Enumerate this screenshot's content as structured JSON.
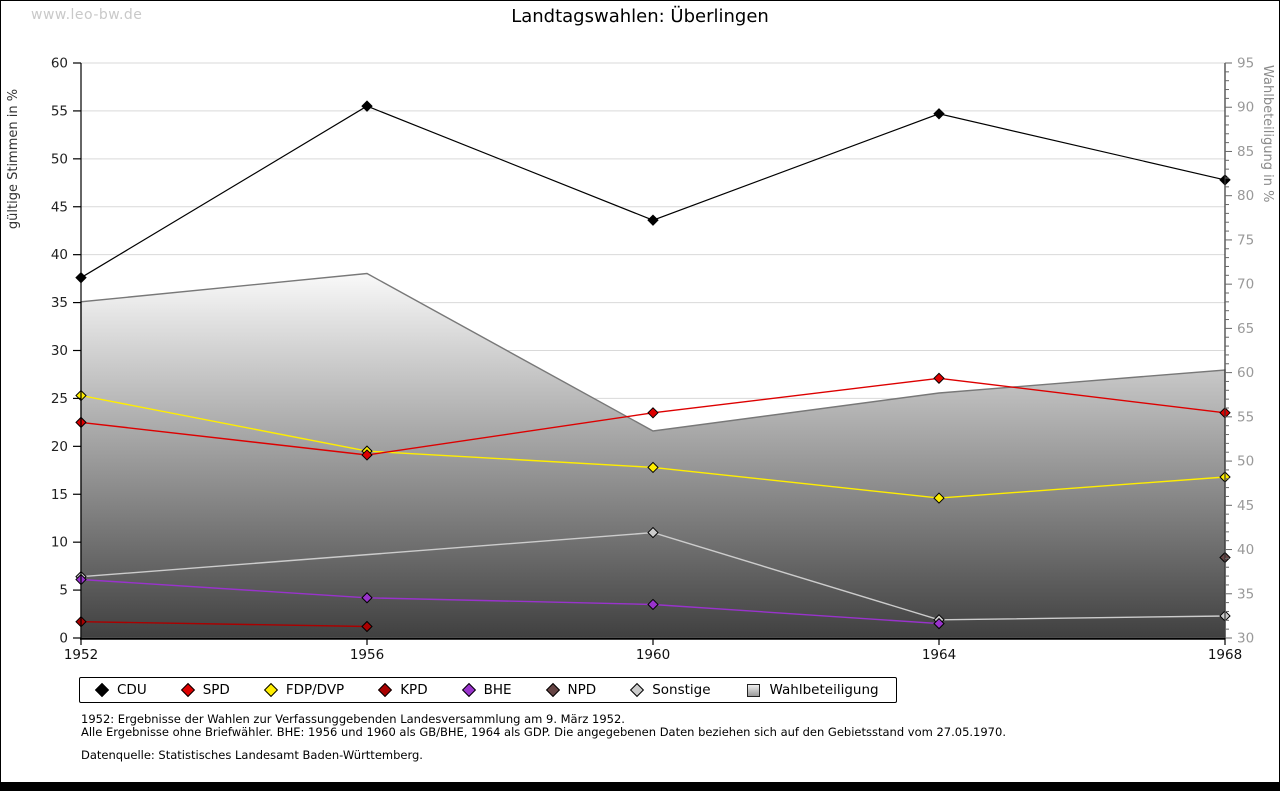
{
  "watermark": "www.leo-bw.de",
  "title": "Landtagswahlen: Überlingen",
  "chart_data": {
    "type": "line",
    "title": "Landtagswahlen: Überlingen",
    "x": [
      1952,
      1956,
      1960,
      1964,
      1968
    ],
    "ylabel_left": "gültige Stimmen in %",
    "ylabel_right": "Wahlbeteiligung in %",
    "ylim_left": [
      0,
      60
    ],
    "ylim_right": [
      30,
      95
    ],
    "ytick_step": 5,
    "grid": true,
    "legend_position": "bottom",
    "series": [
      {
        "name": "CDU",
        "color": "#000000",
        "axis": "left",
        "values": [
          37.6,
          55.5,
          43.6,
          54.7,
          47.8
        ]
      },
      {
        "name": "SPD",
        "color": "#dd0000",
        "axis": "left",
        "values": [
          22.5,
          19.1,
          23.5,
          27.1,
          23.5
        ]
      },
      {
        "name": "FDP/DVP",
        "color": "#ffee00",
        "axis": "left",
        "values": [
          25.3,
          19.5,
          17.8,
          14.6,
          16.8
        ]
      },
      {
        "name": "KPD",
        "color": "#aa0000",
        "axis": "left",
        "values": [
          1.7,
          1.2,
          null,
          null,
          null
        ]
      },
      {
        "name": "BHE",
        "color": "#9933cc",
        "axis": "left",
        "values": [
          6.1,
          4.2,
          3.5,
          1.5,
          null
        ]
      },
      {
        "name": "NPD",
        "color": "#664444",
        "axis": "left",
        "values": [
          null,
          null,
          null,
          null,
          8.4
        ]
      },
      {
        "name": "Sonstige",
        "color": "#cccccc",
        "axis": "left",
        "values": [
          6.4,
          null,
          11.0,
          1.9,
          2.3
        ]
      }
    ],
    "area_series": {
      "name": "Wahlbeteiligung",
      "axis": "right",
      "values": [
        68.0,
        71.2,
        53.4,
        57.7,
        60.3
      ],
      "stroke": "#787878",
      "fill_top": "#f9f9f9",
      "fill_bottom": "#404040"
    }
  },
  "legend": {
    "items": [
      {
        "label": "CDU",
        "color": "#000000",
        "marker": "diamond"
      },
      {
        "label": "SPD",
        "color": "#dd0000",
        "marker": "diamond"
      },
      {
        "label": "FDP/DVP",
        "color": "#ffee00",
        "marker": "diamond"
      },
      {
        "label": "KPD",
        "color": "#aa0000",
        "marker": "diamond"
      },
      {
        "label": "BHE",
        "color": "#9933cc",
        "marker": "diamond"
      },
      {
        "label": "NPD",
        "color": "#664444",
        "marker": "diamond"
      },
      {
        "label": "Sonstige",
        "color": "#cccccc",
        "marker": "diamond"
      },
      {
        "label": "Wahlbeteiligung",
        "color": "#bbbbbb",
        "marker": "square"
      }
    ]
  },
  "footnotes": {
    "line1": "1952: Ergebnisse der Wahlen zur Verfassunggebenden Landesversammlung am 9. März 1952.",
    "line2": "Alle Ergebnisse ohne Briefwähler. BHE: 1956 und 1960 als GB/BHE, 1964 als GDP. Die angegebenen Daten beziehen sich auf den Gebietsstand vom 27.05.1970.",
    "source": "Datenquelle: Statistisches Landesamt Baden-Württemberg."
  },
  "colors": {
    "grid": "#d9d9d9",
    "axis": "#000000",
    "left_tick_label": "#222222",
    "right_tick_label": "#999999",
    "watermark": "#c9c9c9"
  }
}
